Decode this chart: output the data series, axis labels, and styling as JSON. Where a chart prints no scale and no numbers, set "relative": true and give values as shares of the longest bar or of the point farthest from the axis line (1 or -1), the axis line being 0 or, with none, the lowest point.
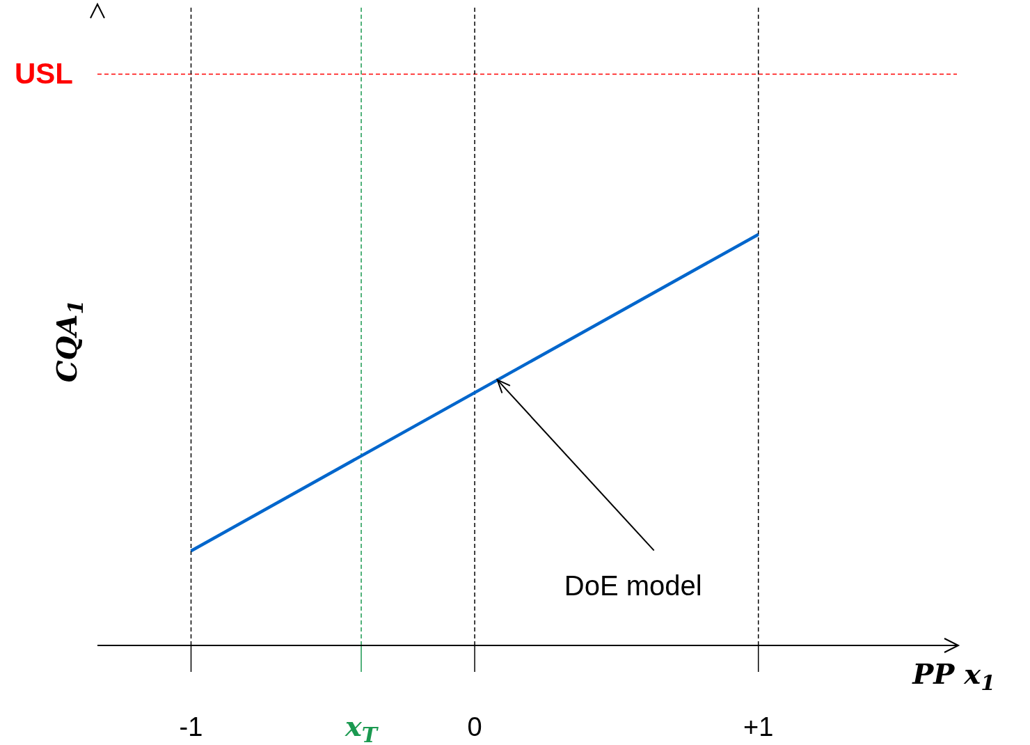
{
  "chart_data": {
    "type": "line",
    "relative": true,
    "xlabel": "PP x$_{1}$",
    "ylabel": "CQA$_{1}$",
    "x": [
      -1,
      1
    ],
    "series": [
      {
        "color": "#0066cc",
        "values": [
          0.23,
          1
        ]
      }
    ],
    "xlim": [
      -1.33,
      1.7
    ],
    "xticks": [
      {
        "value": -1,
        "label": "-1"
      },
      {
        "value": 0,
        "label": "0"
      },
      {
        "value": 1,
        "label": "+1"
      }
    ],
    "ref_lines": [
      {
        "axis": "y",
        "value": 1.39,
        "label": "USL",
        "color": "#ff0000",
        "line_style": "dashed"
      },
      {
        "axis": "x",
        "value": -1,
        "label": null,
        "color": "#000000",
        "line_style": "dashed"
      },
      {
        "axis": "x",
        "value": -0.4,
        "label": "x$_{T}$",
        "color": "#1a9950",
        "line_style": "dashed"
      },
      {
        "axis": "x",
        "value": 0,
        "label": null,
        "color": "#000000",
        "line_style": "dashed"
      },
      {
        "axis": "x",
        "value": 1,
        "label": null,
        "color": "#000000",
        "line_style": "dashed"
      }
    ],
    "annotations": [
      {
        "text": "DoE model",
        "x": 0.08,
        "y": 0.646
      }
    ],
    "grid": false,
    "legend": false,
    "marker": "none",
    "line_style": "solid"
  }
}
